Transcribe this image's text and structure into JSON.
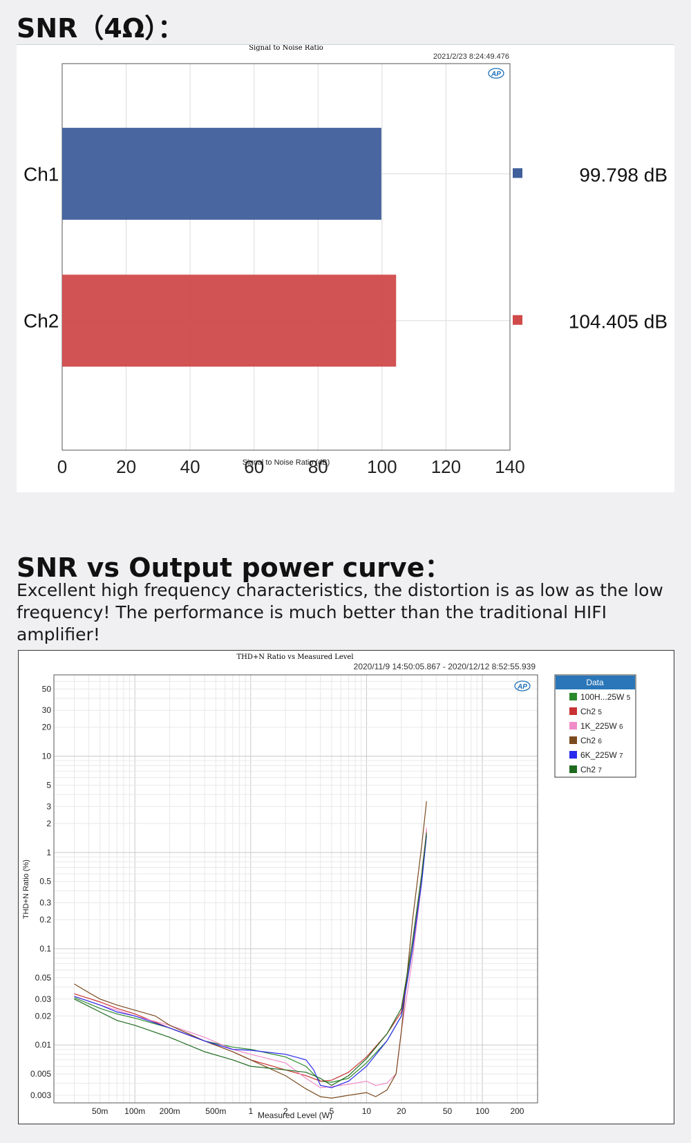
{
  "section1": {
    "heading": "SNR（4Ω）："
  },
  "section2": {
    "heading": "SNR vs Output power curve：",
    "description": "Excellent high frequency characteristics, the distortion is as low as the low frequency! The performance is much better than the traditional HIFI amplifier!"
  },
  "logo_text": "AP",
  "chart_data": [
    {
      "type": "bar",
      "orientation": "horizontal",
      "title": "Signal to Noise Ratio",
      "timestamp": "2021/2/23 8:24:49.476",
      "xlabel": "Signal to Noise Ratio (dB)",
      "xlim": [
        0,
        140
      ],
      "xticks": [
        "0",
        "20",
        "40",
        "60",
        "80",
        "100",
        "120",
        "140"
      ],
      "grid": true,
      "legend": "right",
      "categories": [
        "Ch1",
        "Ch2"
      ],
      "values": [
        99.798,
        104.405
      ],
      "value_labels": [
        "99.798 dB",
        "104.405 dB"
      ],
      "colors": [
        "#3f5e9b",
        "#d04a4a"
      ]
    },
    {
      "type": "line",
      "title": "THD+N Ratio vs Measured Level",
      "timestamp": "2020/11/9 14:50:05.867 - 2020/12/12 8:52:55.939",
      "xlabel": "Measured Level (W)",
      "ylabel": "THD+N Ratio (%)",
      "xscale": "log",
      "yscale": "log",
      "xlim": [
        0.02,
        300
      ],
      "ylim": [
        0.0025,
        70
      ],
      "xticks": [
        0.05,
        0.1,
        0.2,
        0.5,
        1,
        2,
        5,
        10,
        20,
        50,
        100,
        200
      ],
      "xtick_labels": [
        "50m",
        "100m",
        "200m",
        "500m",
        "1",
        "2",
        "5",
        "10",
        "20",
        "50",
        "100",
        "200"
      ],
      "yticks": [
        50,
        30,
        20,
        10,
        5,
        3,
        2,
        1,
        0.5,
        0.3,
        0.2,
        0.1,
        0.05,
        0.03,
        0.02,
        0.01,
        0.005,
        0.003
      ],
      "ytick_labels": [
        "50",
        "30",
        "20",
        "10",
        "5",
        "3",
        "2",
        "1",
        "0.5",
        "0.3",
        "0.2",
        "0.1",
        "0.05",
        "0.03",
        "0.02",
        "0.01",
        "0.005",
        "0.003"
      ],
      "grid": true,
      "legend": "right",
      "legend_title": "Data",
      "series": [
        {
          "name": "100H...25W",
          "suffix": "5",
          "color": "#2a8a2a",
          "x": [
            0.03,
            0.05,
            0.07,
            0.1,
            0.2,
            0.4,
            0.7,
            1,
            2,
            3,
            4,
            5,
            7,
            10,
            15,
            20,
            25,
            30,
            33
          ],
          "y": [
            0.031,
            0.024,
            0.021,
            0.019,
            0.015,
            0.011,
            0.0095,
            0.009,
            0.0075,
            0.006,
            0.0042,
            0.0041,
            0.0045,
            0.0065,
            0.011,
            0.02,
            0.1,
            0.5,
            1.6
          ]
        },
        {
          "name": "Ch2",
          "suffix": "5",
          "color": "#c83232",
          "x": [
            0.03,
            0.05,
            0.07,
            0.1,
            0.2,
            0.4,
            0.7,
            1,
            2,
            3,
            4,
            5,
            7,
            10,
            15,
            20,
            25,
            30,
            33
          ],
          "y": [
            0.034,
            0.028,
            0.024,
            0.021,
            0.015,
            0.011,
            0.0085,
            0.007,
            0.0055,
            0.0048,
            0.0042,
            0.0043,
            0.0052,
            0.0075,
            0.013,
            0.022,
            0.12,
            0.6,
            1.7
          ]
        },
        {
          "name": "1K_225W",
          "suffix": "6",
          "color": "#f08cc8",
          "x": [
            0.03,
            0.05,
            0.07,
            0.1,
            0.2,
            0.4,
            0.7,
            1,
            2,
            3,
            4,
            5,
            7,
            10,
            12,
            15,
            18,
            20,
            25,
            30,
            33
          ],
          "y": [
            0.032,
            0.026,
            0.023,
            0.02,
            0.016,
            0.012,
            0.009,
            0.008,
            0.0065,
            0.0045,
            0.0036,
            0.0037,
            0.0039,
            0.0042,
            0.0038,
            0.004,
            0.005,
            0.014,
            0.08,
            0.5,
            1.8
          ]
        },
        {
          "name": "Ch2",
          "suffix": "6",
          "color": "#7a4a1e",
          "x": [
            0.03,
            0.04,
            0.05,
            0.07,
            0.1,
            0.15,
            0.2,
            0.4,
            0.7,
            1,
            2,
            3,
            4,
            5,
            7,
            10,
            12,
            15,
            18,
            20,
            25,
            30,
            33
          ],
          "y": [
            0.043,
            0.035,
            0.03,
            0.026,
            0.023,
            0.02,
            0.016,
            0.011,
            0.0085,
            0.007,
            0.0048,
            0.0035,
            0.0029,
            0.0028,
            0.003,
            0.0032,
            0.0029,
            0.0034,
            0.005,
            0.014,
            0.2,
            1.2,
            3.4
          ]
        },
        {
          "name": "6K_225W",
          "suffix": "7",
          "color": "#2a2aee",
          "x": [
            0.03,
            0.05,
            0.07,
            0.1,
            0.2,
            0.4,
            0.7,
            1,
            2,
            3,
            3.5,
            4,
            5,
            7,
            10,
            15,
            20,
            25,
            30,
            33
          ],
          "y": [
            0.032,
            0.026,
            0.022,
            0.02,
            0.015,
            0.011,
            0.009,
            0.0088,
            0.008,
            0.007,
            0.0055,
            0.0038,
            0.0036,
            0.0042,
            0.006,
            0.011,
            0.02,
            0.1,
            0.5,
            1.5
          ]
        },
        {
          "name": "Ch2",
          "suffix": "7",
          "color": "#1e6a1e",
          "x": [
            0.03,
            0.05,
            0.07,
            0.1,
            0.2,
            0.4,
            0.7,
            1,
            2,
            3,
            4,
            5,
            7,
            10,
            15,
            20,
            25,
            30,
            33
          ],
          "y": [
            0.03,
            0.022,
            0.018,
            0.016,
            0.012,
            0.0085,
            0.007,
            0.006,
            0.0055,
            0.0052,
            0.0045,
            0.0038,
            0.0048,
            0.0072,
            0.013,
            0.024,
            0.12,
            0.6,
            1.6
          ]
        }
      ]
    }
  ]
}
